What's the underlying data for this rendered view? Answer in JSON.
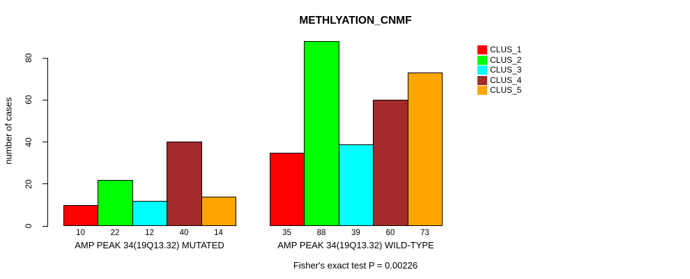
{
  "chart_data": {
    "type": "bar",
    "title": "METHLYATION_CNMF",
    "ylabel": "number of cases",
    "xlabel": "",
    "footer": "Fisher's exact test P = 0.00226",
    "yticks": [
      0,
      20,
      40,
      60,
      80
    ],
    "ylim": [
      0,
      88
    ],
    "grid": false,
    "legend_position": "right",
    "bar_value_labels": true,
    "categories": [
      "AMP PEAK 34(19Q13.32) MUTATED",
      "AMP PEAK 34(19Q13.32) WILD-TYPE"
    ],
    "series": [
      {
        "name": "CLUS_1",
        "color": "#FF0000",
        "values": [
          10,
          35
        ]
      },
      {
        "name": "CLUS_2",
        "color": "#00FF00",
        "values": [
          22,
          88
        ]
      },
      {
        "name": "CLUS_3",
        "color": "#00FFFF",
        "values": [
          12,
          39
        ]
      },
      {
        "name": "CLUS_4",
        "color": "#A52A2A",
        "values": [
          40,
          60
        ]
      },
      {
        "name": "CLUS_5",
        "color": "#FFA500",
        "values": [
          14,
          73
        ]
      }
    ],
    "colors": {
      "bar_border": "#000000",
      "axis": "#000000",
      "text": "#000000",
      "background": "#FFFFFF"
    }
  }
}
